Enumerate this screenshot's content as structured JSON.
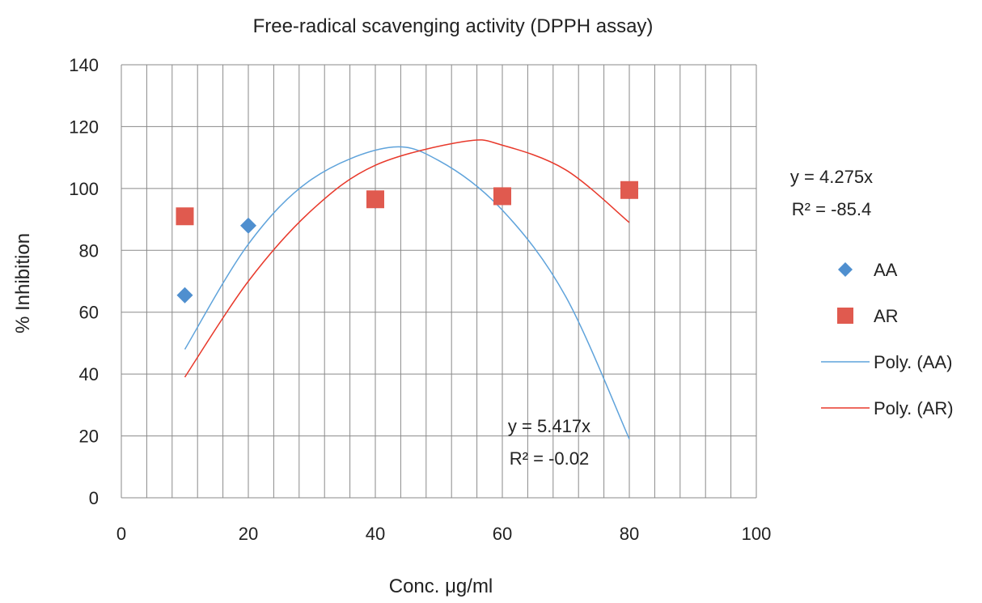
{
  "chart_data": {
    "type": "scatter",
    "title": "Free-radical scavenging activity (DPPH assay)",
    "xlabel": "Conc. μg/ml",
    "ylabel": "% Inhibition",
    "xlim": [
      0,
      100
    ],
    "ylim": [
      0,
      140
    ],
    "x_ticks": [
      "0",
      "20",
      "40",
      "60",
      "80",
      "100"
    ],
    "y_ticks": [
      "0",
      "20",
      "40",
      "60",
      "80",
      "100",
      "120",
      "140"
    ],
    "grid": true,
    "legend_position": "right",
    "series": [
      {
        "name": "AA",
        "marker": "diamond",
        "color": "#4f8fcf",
        "points": [
          [
            10,
            65.5
          ],
          [
            20,
            88
          ],
          [
            40,
            96
          ],
          [
            60,
            97.5
          ],
          [
            80,
            99
          ]
        ]
      },
      {
        "name": "AR",
        "marker": "square",
        "color": "#e05a4f",
        "points": [
          [
            10,
            91
          ],
          [
            40,
            96.5
          ],
          [
            60,
            97.5
          ],
          [
            80,
            99.5
          ]
        ]
      }
    ],
    "trendlines": [
      {
        "name": "Poly. (AA)",
        "color": "#5fa3db",
        "x_range": [
          10,
          80
        ],
        "curve": [
          [
            10,
            48
          ],
          [
            20,
            82
          ],
          [
            30,
            103
          ],
          [
            42,
            113.2
          ],
          [
            50,
            109
          ],
          [
            60,
            93
          ],
          [
            70,
            65
          ],
          [
            80,
            19
          ]
        ],
        "equation": "y = 5.417x",
        "r2": "R² = -0.02"
      },
      {
        "name": "Poly. (AR)",
        "color": "#e8392b",
        "x_range": [
          10,
          80
        ],
        "curve": [
          [
            10,
            39
          ],
          [
            20,
            70
          ],
          [
            30,
            93
          ],
          [
            40,
            107.5
          ],
          [
            54,
            115.2
          ],
          [
            60,
            114
          ],
          [
            70,
            106
          ],
          [
            80,
            89
          ]
        ],
        "equation": "y = 4.275x",
        "r2": "R² = -85.4"
      }
    ]
  }
}
